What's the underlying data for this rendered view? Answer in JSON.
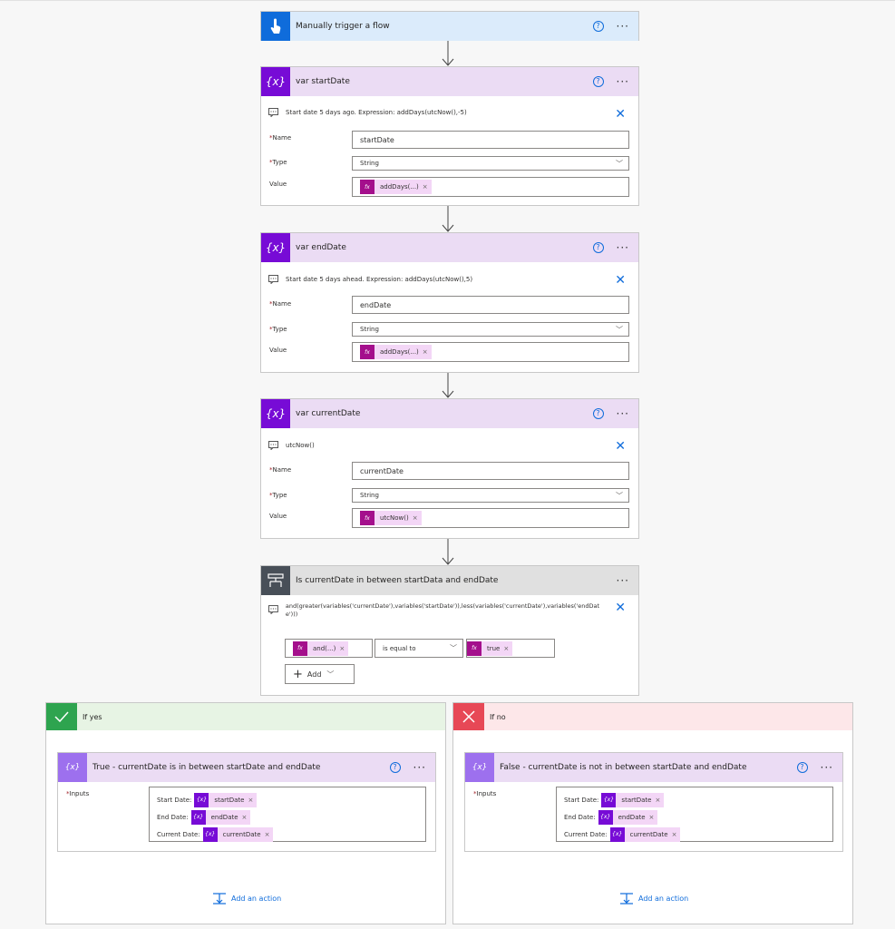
{
  "trigger": {
    "title": "Manually trigger a flow",
    "icon": "hand-touch-icon"
  },
  "var_start": {
    "title": "var startDate",
    "comment": "Start date 5 days ago. Expression: addDays(utcNow(),-5)",
    "name_label": "Name",
    "name_value": "startDate",
    "type_label": "Type",
    "type_value": "String",
    "value_label": "Value",
    "value_token": "addDays(...)"
  },
  "var_end": {
    "title": "var endDate",
    "comment": "Start date 5 days ahead. Expression: addDays(utcNow(),5)",
    "name_label": "Name",
    "name_value": "endDate",
    "type_label": "Type",
    "type_value": "String",
    "value_label": "Value",
    "value_token": "addDays(...)"
  },
  "var_current": {
    "title": "var currentDate",
    "comment": "utcNow()",
    "name_label": "Name",
    "name_value": "currentDate",
    "type_label": "Type",
    "type_value": "String",
    "value_label": "Value",
    "value_token": "utcNow()"
  },
  "condition": {
    "title": "Is currentDate in between startData and endDate",
    "comment": "and(greater(variables('currentDate'),variables('startDate')),less(variables('currentDate'),variables('endDate')))",
    "left_token": "and(...)",
    "operator": "is equal to",
    "right_token": "true",
    "add_label": "Add"
  },
  "yes_branch": {
    "label": "If yes",
    "action_title": "True - currentDate is in between startDate and endDate",
    "inputs_label": "Inputs",
    "rows": [
      {
        "label": "Start Date:",
        "token": "startDate"
      },
      {
        "label": "End Date:",
        "token": "endDate"
      },
      {
        "label": "Current Date:",
        "token": "currentDate"
      }
    ],
    "add_action": "Add an action"
  },
  "no_branch": {
    "label": "If no",
    "action_title": "False - currentDate is not in between startDate and endDate",
    "inputs_label": "Inputs",
    "rows": [
      {
        "label": "Start Date:",
        "token": "startDate"
      },
      {
        "label": "End Date:",
        "token": "endDate"
      },
      {
        "label": "Current Date:",
        "token": "currentDate"
      }
    ],
    "add_action": "Add an action"
  },
  "common": {
    "help": "?",
    "more": "···",
    "close": "✕",
    "fx": "fx",
    "varx": "{x}",
    "remove": "×",
    "required": "*"
  },
  "colors": {
    "accent": "#0f6cdb",
    "variable": "#770bd6",
    "expression": "#a40f8c",
    "yes": "#2ea44f",
    "no": "#e74856"
  }
}
